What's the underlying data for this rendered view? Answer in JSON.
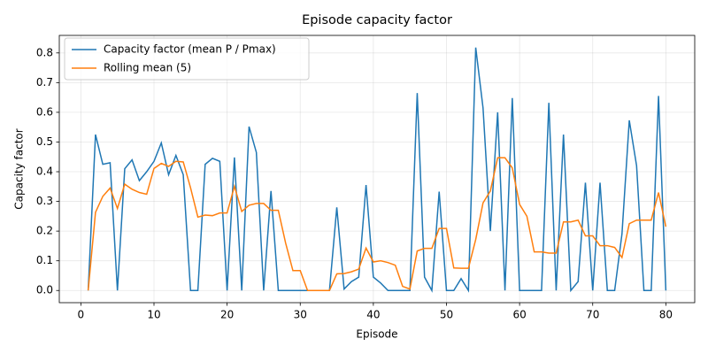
{
  "chart_data": {
    "type": "line",
    "title": "Episode capacity factor",
    "x_label": "Episode",
    "y_label": "Capacity factor",
    "x": [
      1,
      2,
      3,
      4,
      5,
      6,
      7,
      8,
      9,
      10,
      11,
      12,
      13,
      14,
      15,
      16,
      17,
      18,
      19,
      20,
      21,
      22,
      23,
      24,
      25,
      26,
      27,
      28,
      29,
      30,
      31,
      32,
      33,
      34,
      35,
      36,
      37,
      38,
      39,
      40,
      41,
      42,
      43,
      44,
      45,
      46,
      47,
      48,
      49,
      50,
      51,
      52,
      53,
      54,
      55,
      56,
      57,
      58,
      59,
      60,
      61,
      62,
      63,
      64,
      65,
      66,
      67,
      68,
      69,
      70,
      71,
      72,
      73,
      74,
      75,
      76,
      77,
      78,
      79,
      80
    ],
    "series": [
      {
        "name": "Capacity factor (mean P / Pmax)",
        "color": "#1f77b4",
        "values": [
          0,
          0.525,
          0.425,
          0.43,
          0,
          0.41,
          0.44,
          0.37,
          0.4,
          0.435,
          0.497,
          0.39,
          0.455,
          0.39,
          0,
          0,
          0.425,
          0.445,
          0.435,
          0,
          0.448,
          0,
          0.552,
          0.465,
          0,
          0.335,
          0,
          0,
          0,
          0,
          0,
          0,
          0,
          0,
          0.28,
          0.005,
          0.03,
          0.045,
          0.355,
          0.045,
          0.025,
          0,
          0,
          0,
          0,
          0.665,
          0.045,
          0,
          0.333,
          0,
          0,
          0.04,
          0,
          0.818,
          0.615,
          0.2,
          0.6,
          0,
          0.648,
          0,
          0,
          0,
          0,
          0.632,
          0,
          0.525,
          0,
          0.03,
          0.363,
          0,
          0.363,
          0,
          0,
          0.19,
          0.573,
          0.42,
          0,
          0,
          0.655,
          0
        ]
      },
      {
        "name": "Rolling mean (5)",
        "color": "#ff7f0e",
        "values": [
          0,
          0.263,
          0.317,
          0.345,
          0.276,
          0.358,
          0.341,
          0.33,
          0.324,
          0.411,
          0.428,
          0.418,
          0.435,
          0.433,
          0.346,
          0.247,
          0.254,
          0.252,
          0.261,
          0.261,
          0.351,
          0.266,
          0.287,
          0.293,
          0.293,
          0.27,
          0.27,
          0.16,
          0.067,
          0.067,
          0,
          0,
          0,
          0,
          0.056,
          0.057,
          0.063,
          0.072,
          0.143,
          0.096,
          0.1,
          0.094,
          0.085,
          0.014,
          0.005,
          0.133,
          0.142,
          0.142,
          0.209,
          0.209,
          0.076,
          0.075,
          0.075,
          0.172,
          0.295,
          0.335,
          0.447,
          0.447,
          0.413,
          0.29,
          0.25,
          0.13,
          0.13,
          0.126,
          0.126,
          0.231,
          0.231,
          0.237,
          0.184,
          0.184,
          0.151,
          0.151,
          0.145,
          0.111,
          0.225,
          0.237,
          0.237,
          0.237,
          0.33,
          0.215
        ]
      }
    ],
    "xlim": [
      -2.95,
      83.95
    ],
    "xticks": [
      0,
      10,
      20,
      30,
      40,
      50,
      60,
      70,
      80
    ],
    "ylim": [
      -0.041,
      0.859
    ],
    "yticks": [
      {
        "value": 0,
        "label": "0.0"
      },
      0.1,
      0.2,
      0.3,
      0.4,
      0.5,
      0.6,
      0.7,
      0.8
    ],
    "grid": true,
    "legend": "upper-left"
  }
}
